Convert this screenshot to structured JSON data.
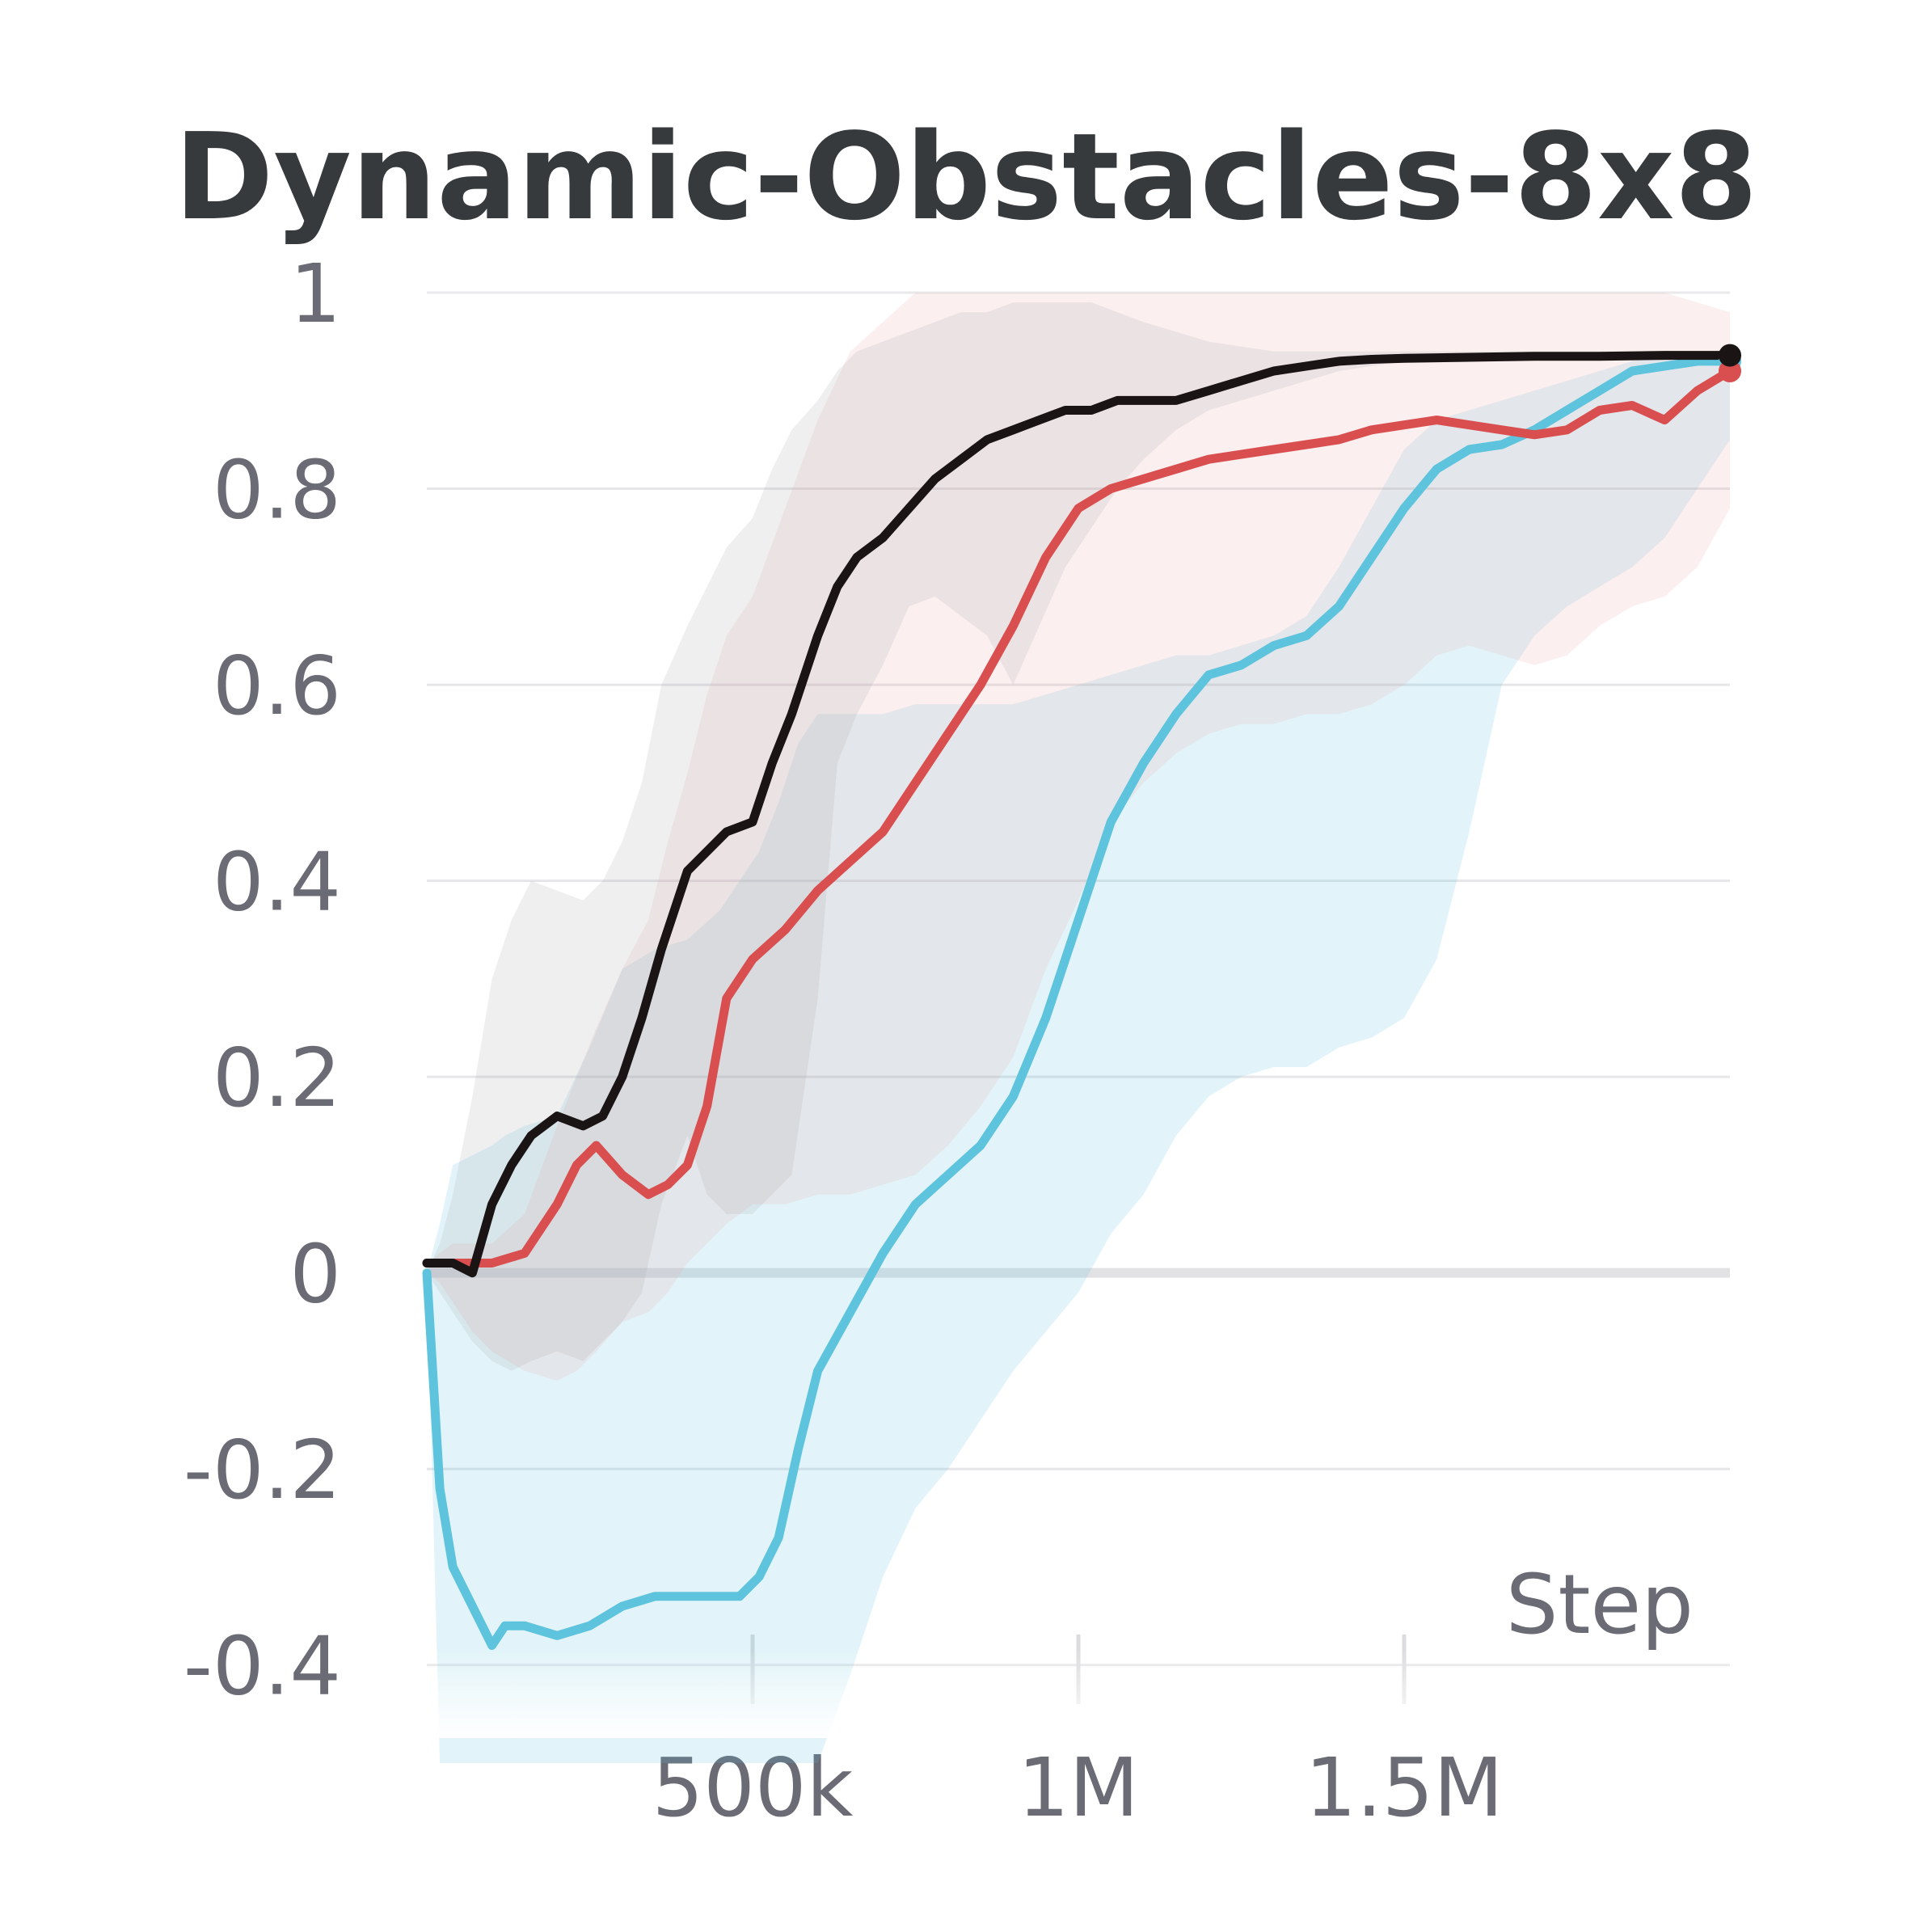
{
  "chart_data": {
    "type": "line",
    "title": "Dynamic-Obstacles-8x8",
    "xlabel": "Step",
    "ylabel": "",
    "xlim": [
      0,
      2000000
    ],
    "ylim": [
      -0.5,
      1.0
    ],
    "grid": true,
    "legend": "none",
    "x_ticks": [
      {
        "value": 500000,
        "label": "500k"
      },
      {
        "value": 1000000,
        "label": "1M"
      },
      {
        "value": 1500000,
        "label": "1.5M"
      }
    ],
    "y_ticks": [
      {
        "value": 1.0,
        "label": "1"
      },
      {
        "value": 0.8,
        "label": "0.8"
      },
      {
        "value": 0.6,
        "label": "0.6"
      },
      {
        "value": 0.4,
        "label": "0.4"
      },
      {
        "value": 0.2,
        "label": "0.2"
      },
      {
        "value": 0.0,
        "label": "0"
      },
      {
        "value": -0.2,
        "label": "-0.2"
      },
      {
        "value": -0.4,
        "label": "-0.4"
      }
    ],
    "series": [
      {
        "color": "#5ec3dc",
        "band_color": "#5ec3dc",
        "x": [
          0,
          20000,
          40000,
          70000,
          100000,
          120000,
          150000,
          200000,
          250000,
          300000,
          350000,
          400000,
          450000,
          480000,
          510000,
          540000,
          570000,
          600000,
          650000,
          700000,
          750000,
          800000,
          850000,
          900000,
          950000,
          1000000,
          1050000,
          1100000,
          1150000,
          1200000,
          1250000,
          1300000,
          1350000,
          1400000,
          1450000,
          1500000,
          1550000,
          1600000,
          1650000,
          1700000,
          1750000,
          1800000,
          1850000,
          1900000,
          1950000,
          2000000
        ],
        "y": [
          0.0,
          -0.22,
          -0.3,
          -0.34,
          -0.38,
          -0.36,
          -0.36,
          -0.37,
          -0.36,
          -0.34,
          -0.33,
          -0.33,
          -0.33,
          -0.33,
          -0.31,
          -0.27,
          -0.18,
          -0.1,
          -0.04,
          0.02,
          0.07,
          0.1,
          0.13,
          0.18,
          0.26,
          0.36,
          0.46,
          0.52,
          0.57,
          0.61,
          0.62,
          0.64,
          0.65,
          0.68,
          0.73,
          0.78,
          0.82,
          0.84,
          0.845,
          0.86,
          0.88,
          0.9,
          0.92,
          0.925,
          0.93,
          0.93
        ],
        "lower": [
          0.0,
          -0.5,
          -0.5,
          -0.5,
          -0.5,
          -0.5,
          -0.5,
          -0.5,
          -0.5,
          -0.5,
          -0.5,
          -0.5,
          -0.5,
          -0.5,
          -0.5,
          -0.5,
          -0.5,
          -0.5,
          -0.41,
          -0.31,
          -0.24,
          -0.2,
          -0.15,
          -0.1,
          -0.06,
          -0.02,
          0.04,
          0.08,
          0.14,
          0.18,
          0.2,
          0.21,
          0.21,
          0.23,
          0.24,
          0.26,
          0.32,
          0.45,
          0.6,
          0.65,
          0.68,
          0.7,
          0.72,
          0.75,
          0.8,
          0.85
        ],
        "upper": [
          0.0,
          0.05,
          0.11,
          0.12,
          0.13,
          0.14,
          0.15,
          0.16,
          0.23,
          0.31,
          0.33,
          0.34,
          0.37,
          0.4,
          0.43,
          0.48,
          0.54,
          0.57,
          0.57,
          0.57,
          0.58,
          0.58,
          0.58,
          0.58,
          0.59,
          0.6,
          0.61,
          0.62,
          0.63,
          0.63,
          0.64,
          0.65,
          0.67,
          0.72,
          0.78,
          0.84,
          0.87,
          0.88,
          0.89,
          0.9,
          0.91,
          0.92,
          0.93,
          0.935,
          0.94,
          0.94
        ]
      },
      {
        "color": "#d94e4e",
        "band_color": "#e8a6a6",
        "x": [
          0,
          20000,
          40000,
          70000,
          100000,
          150000,
          200000,
          230000,
          260000,
          300000,
          340000,
          370000,
          400000,
          430000,
          460000,
          500000,
          550000,
          600000,
          650000,
          700000,
          750000,
          800000,
          850000,
          900000,
          950000,
          1000000,
          1050000,
          1100000,
          1150000,
          1200000,
          1250000,
          1300000,
          1350000,
          1400000,
          1450000,
          1500000,
          1550000,
          1600000,
          1650000,
          1700000,
          1750000,
          1800000,
          1850000,
          1900000,
          1950000,
          2000000
        ],
        "y": [
          0.01,
          0.01,
          0.01,
          0.01,
          0.01,
          0.02,
          0.07,
          0.11,
          0.13,
          0.1,
          0.08,
          0.09,
          0.11,
          0.17,
          0.28,
          0.32,
          0.35,
          0.39,
          0.42,
          0.45,
          0.5,
          0.55,
          0.6,
          0.66,
          0.73,
          0.78,
          0.8,
          0.81,
          0.82,
          0.83,
          0.835,
          0.84,
          0.845,
          0.85,
          0.86,
          0.865,
          0.87,
          0.865,
          0.86,
          0.855,
          0.86,
          0.88,
          0.885,
          0.87,
          0.9,
          0.92
        ],
        "lower": [
          0.0,
          -0.01,
          -0.03,
          -0.06,
          -0.08,
          -0.1,
          -0.11,
          -0.1,
          -0.08,
          -0.05,
          -0.04,
          -0.02,
          0.01,
          0.03,
          0.05,
          0.07,
          0.07,
          0.08,
          0.08,
          0.09,
          0.1,
          0.13,
          0.17,
          0.22,
          0.31,
          0.38,
          0.46,
          0.5,
          0.53,
          0.55,
          0.56,
          0.56,
          0.57,
          0.57,
          0.58,
          0.6,
          0.63,
          0.64,
          0.63,
          0.62,
          0.63,
          0.66,
          0.68,
          0.69,
          0.72,
          0.78
        ],
        "upper": [
          0.01,
          0.02,
          0.03,
          0.03,
          0.03,
          0.06,
          0.15,
          0.2,
          0.25,
          0.31,
          0.36,
          0.44,
          0.51,
          0.59,
          0.65,
          0.69,
          0.78,
          0.87,
          0.94,
          0.97,
          1.0,
          1.0,
          1.0,
          1.0,
          1.0,
          1.0,
          1.0,
          1.0,
          1.0,
          1.0,
          1.0,
          1.0,
          1.0,
          1.0,
          1.0,
          1.0,
          1.0,
          1.0,
          1.0,
          1.0,
          1.0,
          1.0,
          1.0,
          1.0,
          0.99,
          0.98
        ]
      },
      {
        "color": "#1a1414",
        "band_color": "#a9a9ad",
        "x": [
          0,
          20000,
          40000,
          70000,
          100000,
          130000,
          160000,
          200000,
          240000,
          270000,
          300000,
          330000,
          360000,
          400000,
          430000,
          460000,
          500000,
          530000,
          560000,
          600000,
          630000,
          660000,
          700000,
          740000,
          780000,
          820000,
          860000,
          900000,
          940000,
          980000,
          1020000,
          1060000,
          1100000,
          1150000,
          1200000,
          1250000,
          1300000,
          1350000,
          1400000,
          1450000,
          1500000,
          1600000,
          1700000,
          1800000,
          1900000,
          2000000
        ],
        "y": [
          0.01,
          0.01,
          0.01,
          0.0,
          0.07,
          0.11,
          0.14,
          0.16,
          0.15,
          0.16,
          0.2,
          0.26,
          0.33,
          0.41,
          0.43,
          0.45,
          0.46,
          0.52,
          0.57,
          0.65,
          0.7,
          0.73,
          0.75,
          0.78,
          0.81,
          0.83,
          0.85,
          0.86,
          0.87,
          0.88,
          0.88,
          0.89,
          0.89,
          0.89,
          0.9,
          0.91,
          0.92,
          0.925,
          0.93,
          0.932,
          0.933,
          0.934,
          0.935,
          0.935,
          0.936,
          0.936
        ],
        "lower": [
          0.0,
          -0.02,
          -0.04,
          -0.07,
          -0.09,
          -0.1,
          -0.09,
          -0.08,
          -0.09,
          -0.07,
          -0.05,
          -0.02,
          0.07,
          0.14,
          0.08,
          0.06,
          0.06,
          0.08,
          0.1,
          0.28,
          0.52,
          0.57,
          0.62,
          0.68,
          0.69,
          0.67,
          0.65,
          0.6,
          0.66,
          0.72,
          0.76,
          0.8,
          0.83,
          0.86,
          0.88,
          0.89,
          0.9,
          0.91,
          0.92,
          0.925,
          0.93,
          0.93,
          0.933,
          0.933,
          0.934,
          0.935
        ],
        "upper": [
          0.0,
          0.03,
          0.08,
          0.18,
          0.3,
          0.36,
          0.4,
          0.39,
          0.38,
          0.4,
          0.44,
          0.5,
          0.6,
          0.66,
          0.7,
          0.74,
          0.77,
          0.82,
          0.86,
          0.89,
          0.92,
          0.94,
          0.95,
          0.96,
          0.97,
          0.98,
          0.98,
          0.99,
          0.99,
          0.99,
          0.99,
          0.98,
          0.97,
          0.96,
          0.95,
          0.945,
          0.94,
          0.94,
          0.94,
          0.94,
          0.94,
          0.94,
          0.94,
          0.94,
          0.94,
          0.94
        ]
      }
    ]
  }
}
